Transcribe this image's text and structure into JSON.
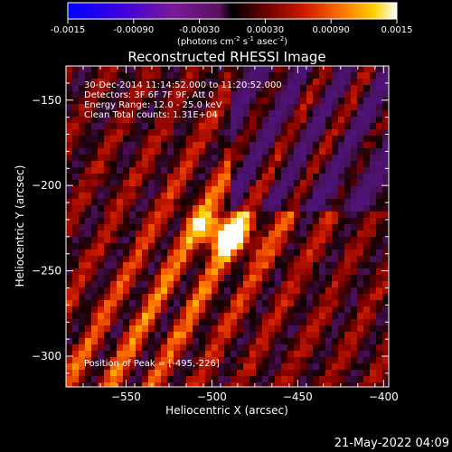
{
  "colorbar": {
    "tick_labels": [
      "-0.0015",
      "-0.00090",
      "-0.00030",
      "0.00030",
      "0.00090",
      "0.0015"
    ],
    "tick_values": [
      -0.0015,
      -0.0009,
      -0.0003,
      0.0003,
      0.0009,
      0.0015
    ],
    "range": [
      -0.0015,
      0.0015
    ],
    "unit_label": "(photons cm",
    "unit_exp1": "-2",
    "unit_mid": " s",
    "unit_exp2": "-1",
    "unit_end": " asec",
    "unit_exp3": "-2",
    "unit_close": ")"
  },
  "chart_data": {
    "type": "heatmap",
    "title": "Reconstructed RHESSI Image",
    "xlabel": "Heliocentric X (arcsec)",
    "ylabel": "Heliocentric Y (arcsec)",
    "xlim": [
      -585,
      -397
    ],
    "ylim": [
      -318,
      -130
    ],
    "x_ticks": [
      -550,
      -500,
      -450,
      -400
    ],
    "y_ticks": [
      -150,
      -200,
      -250,
      -300
    ],
    "x_tick_labels": [
      "−550",
      "−500",
      "−450",
      "−400"
    ],
    "y_tick_labels": [
      "−150",
      "−200",
      "−250",
      "−300"
    ],
    "peak": {
      "x": -495,
      "y": -226
    },
    "annotations": [
      "30-Dec-2014 11:14:52.000 to 11:20:52.000",
      "Detectors: 3F 6F 7F 9F, Att 0",
      "Energy Range: 12.0 - 25.0 keV",
      "Clean    Total counts: 1.31E+04"
    ],
    "peak_label": "Position of Peak = [-495,-226]"
  },
  "footer_timestamp": "21-May-2022 04:09"
}
